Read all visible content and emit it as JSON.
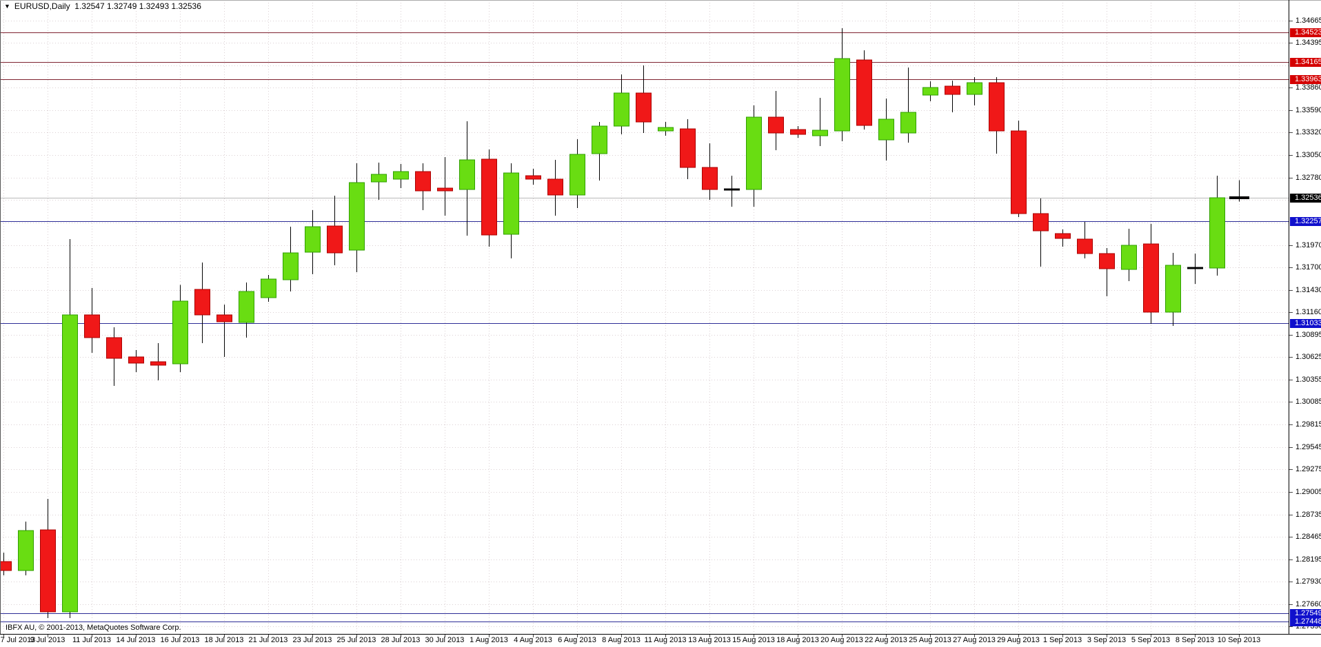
{
  "header": {
    "symbol": "EURUSD,Daily",
    "open": "1.32547",
    "high": "1.32749",
    "low": "1.32493",
    "close": "1.32536"
  },
  "footer": {
    "copyright": "IBFX AU, © 2001-2013, MetaQuotes Software Corp."
  },
  "colors": {
    "background": "#ffffff",
    "grid": "#dacfd2",
    "bull": "#69dd12",
    "bull_border": "#2f9e00",
    "bear": "#f01818",
    "bear_border": "#aa0000",
    "wick": "#000000",
    "doji": "#000000",
    "line_red": "#7e2230",
    "line_blue": "#2b2b96",
    "bid_line": "#b9b9b9",
    "tag_red": "#d40000",
    "tag_blue": "#1010cc",
    "tag_black": "#000000",
    "frame": "#555555",
    "text": "#000000"
  },
  "y_axis": {
    "ticks": [
      "1.34665",
      "1.34395",
      "1.33860",
      "1.33590",
      "1.33320",
      "1.33050",
      "1.32780",
      "1.31970",
      "1.31700",
      "1.31430",
      "1.31160",
      "1.30895",
      "1.30625",
      "1.30355",
      "1.30085",
      "1.29815",
      "1.29545",
      "1.29275",
      "1.29005",
      "1.28735",
      "1.28465",
      "1.28195",
      "1.27930",
      "1.27660",
      "1.27390"
    ],
    "grid_only": [
      "1.34125",
      "1.32510",
      "1.32240"
    ],
    "tags": [
      {
        "value": "1.34523",
        "type": "red"
      },
      {
        "value": "1.34165",
        "type": "red"
      },
      {
        "value": "1.33963",
        "type": "red"
      },
      {
        "value": "1.32536",
        "type": "black"
      },
      {
        "value": "1.32257",
        "type": "blue"
      },
      {
        "value": "1.31033",
        "type": "blue"
      },
      {
        "value": "1.27549",
        "type": "blue"
      },
      {
        "value": "1.27448",
        "type": "blue"
      }
    ]
  },
  "x_axis": {
    "labels": [
      "7 Jul 2013",
      "9 Jul 2013",
      "11 Jul 2013",
      "14 Jul 2013",
      "16 Jul 2013",
      "18 Jul 2013",
      "21 Jul 2013",
      "23 Jul 2013",
      "25 Jul 2013",
      "28 Jul 2013",
      "30 Jul 2013",
      "1 Aug 2013",
      "4 Aug 2013",
      "6 Aug 2013",
      "8 Aug 2013",
      "11 Aug 2013",
      "13 Aug 2013",
      "15 Aug 2013",
      "18 Aug 2013",
      "20 Aug 2013",
      "22 Aug 2013",
      "25 Aug 2013",
      "27 Aug 2013",
      "29 Aug 2013",
      "1 Sep 2013",
      "3 Sep 2013",
      "5 Sep 2013",
      "8 Sep 2013",
      "10 Sep 2013"
    ]
  },
  "chart_data": {
    "type": "candlestick",
    "symbol": "EURUSD",
    "timeframe": "Daily",
    "title": "EURUSD,Daily",
    "y_top": 1.3491,
    "y_bottom": 1.27302,
    "bid": 1.32536,
    "grid": true,
    "hlines": [
      {
        "price": 1.34523,
        "color": "red"
      },
      {
        "price": 1.34165,
        "color": "red"
      },
      {
        "price": 1.33963,
        "color": "red"
      },
      {
        "price": 1.32257,
        "color": "blue"
      },
      {
        "price": 1.31033,
        "color": "blue"
      },
      {
        "price": 1.27549,
        "color": "blue"
      },
      {
        "price": 1.27448,
        "color": "blue"
      }
    ],
    "candles": [
      {
        "d": "7 Jul 2013",
        "o": 1.2817,
        "h": 1.28277,
        "l": 1.28004,
        "c": 1.28062
      },
      {
        "d": "8 Jul 2013",
        "o": 1.28062,
        "h": 1.28649,
        "l": 1.28004,
        "c": 1.28541
      },
      {
        "d": "9 Jul 2013",
        "o": 1.2855,
        "h": 1.28922,
        "l": 1.27492,
        "c": 1.27566
      },
      {
        "d": "10 Jul 2013",
        "o": 1.27566,
        "h": 1.3204,
        "l": 1.27492,
        "c": 1.31131
      },
      {
        "d": "11 Jul 2013",
        "o": 1.31131,
        "h": 1.31453,
        "l": 1.30676,
        "c": 1.30858
      },
      {
        "d": "12 Jul 2013",
        "o": 1.30858,
        "h": 1.30982,
        "l": 1.30279,
        "c": 1.3061
      },
      {
        "d": "14 Jul 2013",
        "o": 1.30627,
        "h": 1.30709,
        "l": 1.30444,
        "c": 1.30552
      },
      {
        "d": "15 Jul 2013",
        "o": 1.30568,
        "h": 1.30791,
        "l": 1.30345,
        "c": 1.30527
      },
      {
        "d": "16 Jul 2013",
        "o": 1.30543,
        "h": 1.3149,
        "l": 1.30444,
        "c": 1.31296
      },
      {
        "d": "17 Jul 2013",
        "o": 1.31437,
        "h": 1.3176,
        "l": 1.30792,
        "c": 1.31131
      },
      {
        "d": "18 Jul 2013",
        "o": 1.31131,
        "h": 1.31255,
        "l": 1.30627,
        "c": 1.31048
      },
      {
        "d": "19 Jul 2013",
        "o": 1.3104,
        "h": 1.31519,
        "l": 1.30858,
        "c": 1.31412
      },
      {
        "d": "21 Jul 2013",
        "o": 1.31337,
        "h": 1.3161,
        "l": 1.31288,
        "c": 1.31561
      },
      {
        "d": "22 Jul 2013",
        "o": 1.31553,
        "h": 1.32189,
        "l": 1.31411,
        "c": 1.31875
      },
      {
        "d": "23 Jul 2013",
        "o": 1.31883,
        "h": 1.32388,
        "l": 1.31618,
        "c": 1.32189
      },
      {
        "d": "24 Jul 2013",
        "o": 1.32197,
        "h": 1.32561,
        "l": 1.31726,
        "c": 1.31875
      },
      {
        "d": "25 Jul 2013",
        "o": 1.31908,
        "h": 1.3295,
        "l": 1.31643,
        "c": 1.32718
      },
      {
        "d": "26 Jul 2013",
        "o": 1.32727,
        "h": 1.32958,
        "l": 1.32512,
        "c": 1.32818
      },
      {
        "d": "28 Jul 2013",
        "o": 1.3276,
        "h": 1.32941,
        "l": 1.32652,
        "c": 1.32851
      },
      {
        "d": "29 Jul 2013",
        "o": 1.32851,
        "h": 1.3295,
        "l": 1.32388,
        "c": 1.32619
      },
      {
        "d": "30 Jul 2013",
        "o": 1.32652,
        "h": 1.33024,
        "l": 1.32322,
        "c": 1.32619
      },
      {
        "d": "31 Jul 2013",
        "o": 1.32636,
        "h": 1.33455,
        "l": 1.32082,
        "c": 1.32991
      },
      {
        "d": "1 Aug 2013",
        "o": 1.33,
        "h": 1.33115,
        "l": 1.31949,
        "c": 1.3209
      },
      {
        "d": "2 Aug 2013",
        "o": 1.32098,
        "h": 1.3295,
        "l": 1.31808,
        "c": 1.32834
      },
      {
        "d": "4 Aug 2013",
        "o": 1.32801,
        "h": 1.32884,
        "l": 1.32694,
        "c": 1.3276
      },
      {
        "d": "5 Aug 2013",
        "o": 1.3276,
        "h": 1.32991,
        "l": 1.32322,
        "c": 1.3257
      },
      {
        "d": "6 Aug 2013",
        "o": 1.3257,
        "h": 1.3324,
        "l": 1.32413,
        "c": 1.33058
      },
      {
        "d": "7 Aug 2013",
        "o": 1.33066,
        "h": 1.33446,
        "l": 1.32743,
        "c": 1.33397
      },
      {
        "d": "8 Aug 2013",
        "o": 1.33397,
        "h": 1.34017,
        "l": 1.33298,
        "c": 1.33794
      },
      {
        "d": "9 Aug 2013",
        "o": 1.33794,
        "h": 1.34125,
        "l": 1.33314,
        "c": 1.33446
      },
      {
        "d": "11 Aug 2013",
        "o": 1.33339,
        "h": 1.33446,
        "l": 1.33281,
        "c": 1.3338
      },
      {
        "d": "12 Aug 2013",
        "o": 1.33364,
        "h": 1.33479,
        "l": 1.3276,
        "c": 1.32901
      },
      {
        "d": "13 Aug 2013",
        "o": 1.32901,
        "h": 1.3319,
        "l": 1.32512,
        "c": 1.32636
      },
      {
        "d": "14 Aug 2013",
        "o": 1.32636,
        "h": 1.32801,
        "l": 1.32429,
        "c": 1.32636,
        "doji": true
      },
      {
        "d": "15 Aug 2013",
        "o": 1.32636,
        "h": 1.33645,
        "l": 1.32429,
        "c": 1.33504
      },
      {
        "d": "16 Aug 2013",
        "o": 1.33504,
        "h": 1.33818,
        "l": 1.33107,
        "c": 1.33314
      },
      {
        "d": "18 Aug 2013",
        "o": 1.33355,
        "h": 1.33397,
        "l": 1.33256,
        "c": 1.33298
      },
      {
        "d": "19 Aug 2013",
        "o": 1.33281,
        "h": 1.33736,
        "l": 1.33157,
        "c": 1.33347
      },
      {
        "d": "20 Aug 2013",
        "o": 1.33339,
        "h": 1.34571,
        "l": 1.33215,
        "c": 1.34207
      },
      {
        "d": "21 Aug 2013",
        "o": 1.34191,
        "h": 1.34306,
        "l": 1.33355,
        "c": 1.33405
      },
      {
        "d": "22 Aug 2013",
        "o": 1.33231,
        "h": 1.33727,
        "l": 1.32983,
        "c": 1.33479
      },
      {
        "d": "23 Aug 2013",
        "o": 1.33314,
        "h": 1.341,
        "l": 1.33198,
        "c": 1.33562
      },
      {
        "d": "25 Aug 2013",
        "o": 1.33769,
        "h": 1.33934,
        "l": 1.33695,
        "c": 1.3386
      },
      {
        "d": "26 Aug 2013",
        "o": 1.33876,
        "h": 1.33942,
        "l": 1.33562,
        "c": 1.33777
      },
      {
        "d": "27 Aug 2013",
        "o": 1.33777,
        "h": 1.33984,
        "l": 1.33645,
        "c": 1.33918
      },
      {
        "d": "28 Aug 2013",
        "o": 1.33918,
        "h": 1.33984,
        "l": 1.33066,
        "c": 1.33339
      },
      {
        "d": "29 Aug 2013",
        "o": 1.33339,
        "h": 1.33463,
        "l": 1.32305,
        "c": 1.32346
      },
      {
        "d": "30 Aug 2013",
        "o": 1.32346,
        "h": 1.3253,
        "l": 1.3171,
        "c": 1.3214
      },
      {
        "d": "1 Sep 2013",
        "o": 1.32106,
        "h": 1.32157,
        "l": 1.3195,
        "c": 1.32048
      },
      {
        "d": "2 Sep 2013",
        "o": 1.3204,
        "h": 1.32247,
        "l": 1.31808,
        "c": 1.31866
      },
      {
        "d": "3 Sep 2013",
        "o": 1.31866,
        "h": 1.31933,
        "l": 1.31354,
        "c": 1.31684
      },
      {
        "d": "4 Sep 2013",
        "o": 1.31676,
        "h": 1.32165,
        "l": 1.31537,
        "c": 1.31966
      },
      {
        "d": "5 Sep 2013",
        "o": 1.31983,
        "h": 1.32222,
        "l": 1.31024,
        "c": 1.31164
      },
      {
        "d": "6 Sep 2013",
        "o": 1.31164,
        "h": 1.31875,
        "l": 1.30999,
        "c": 1.31726
      },
      {
        "d": "8 Sep 2013",
        "o": 1.31684,
        "h": 1.31866,
        "l": 1.31502,
        "c": 1.3169,
        "doji": true
      },
      {
        "d": "9 Sep 2013",
        "o": 1.31693,
        "h": 1.32801,
        "l": 1.31602,
        "c": 1.32536
      },
      {
        "d": "10 Sep 2013",
        "o": 1.32547,
        "h": 1.32749,
        "l": 1.32493,
        "c": 1.32536,
        "doji": true,
        "bold": true
      }
    ]
  }
}
